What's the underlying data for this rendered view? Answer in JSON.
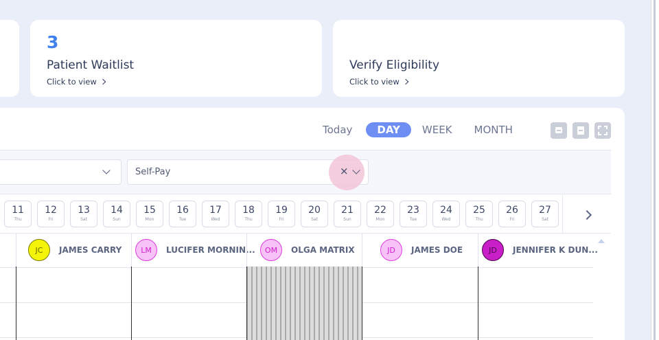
{
  "cards": {
    "waitlist": {
      "count": "3",
      "title": "Patient Waitlist",
      "link": "Click to view"
    },
    "eligibility": {
      "title": "Verify Eligibility",
      "link": "Click to view"
    }
  },
  "views": {
    "today": "Today",
    "day": "DAY",
    "week": "WEEK",
    "month": "MONTH",
    "active": "DAY"
  },
  "tools": [
    "print-icon",
    "save-icon",
    "fullscreen-icon"
  ],
  "filters": {
    "first_value": "",
    "payer_value": "Self-Pay",
    "clear_glyph": "×"
  },
  "dates": [
    {
      "num": "11",
      "dow": "Thu"
    },
    {
      "num": "12",
      "dow": "Fri"
    },
    {
      "num": "13",
      "dow": "Sat"
    },
    {
      "num": "14",
      "dow": "Sun"
    },
    {
      "num": "15",
      "dow": "Mon"
    },
    {
      "num": "16",
      "dow": "Tue"
    },
    {
      "num": "17",
      "dow": "Wed"
    },
    {
      "num": "18",
      "dow": "Thu"
    },
    {
      "num": "19",
      "dow": "Fri"
    },
    {
      "num": "20",
      "dow": "Sat"
    },
    {
      "num": "21",
      "dow": "Sun"
    },
    {
      "num": "22",
      "dow": "Mon"
    },
    {
      "num": "23",
      "dow": "Tue"
    },
    {
      "num": "24",
      "dow": "Wed"
    },
    {
      "num": "25",
      "dow": "Thu"
    },
    {
      "num": "26",
      "dow": "Fri"
    },
    {
      "num": "27",
      "dow": "Sat"
    }
  ],
  "providers": [
    {
      "initials": "JC",
      "name": "JAMES CARRY",
      "bg": "#f4f40a",
      "border": "#7a7a00",
      "fg": "#6b6b00"
    },
    {
      "initials": "LM",
      "name": "LUCIFER MORNIN...",
      "bg": "#f7c2f7",
      "border": "#e03ae0",
      "fg": "#d11fd1"
    },
    {
      "initials": "OM",
      "name": "OLGA MATRIX",
      "bg": "#f7c2f7",
      "border": "#e03ae0",
      "fg": "#d11fd1"
    },
    {
      "initials": "JD",
      "name": "JAMES DOE",
      "bg": "#f7c2f7",
      "border": "#e03ae0",
      "fg": "#d11fd1"
    },
    {
      "initials": "JD",
      "name": "JENNIFER K DUN...",
      "bg": "#c91fc9",
      "border": "#4a074a",
      "fg": "#4a074a"
    }
  ]
}
